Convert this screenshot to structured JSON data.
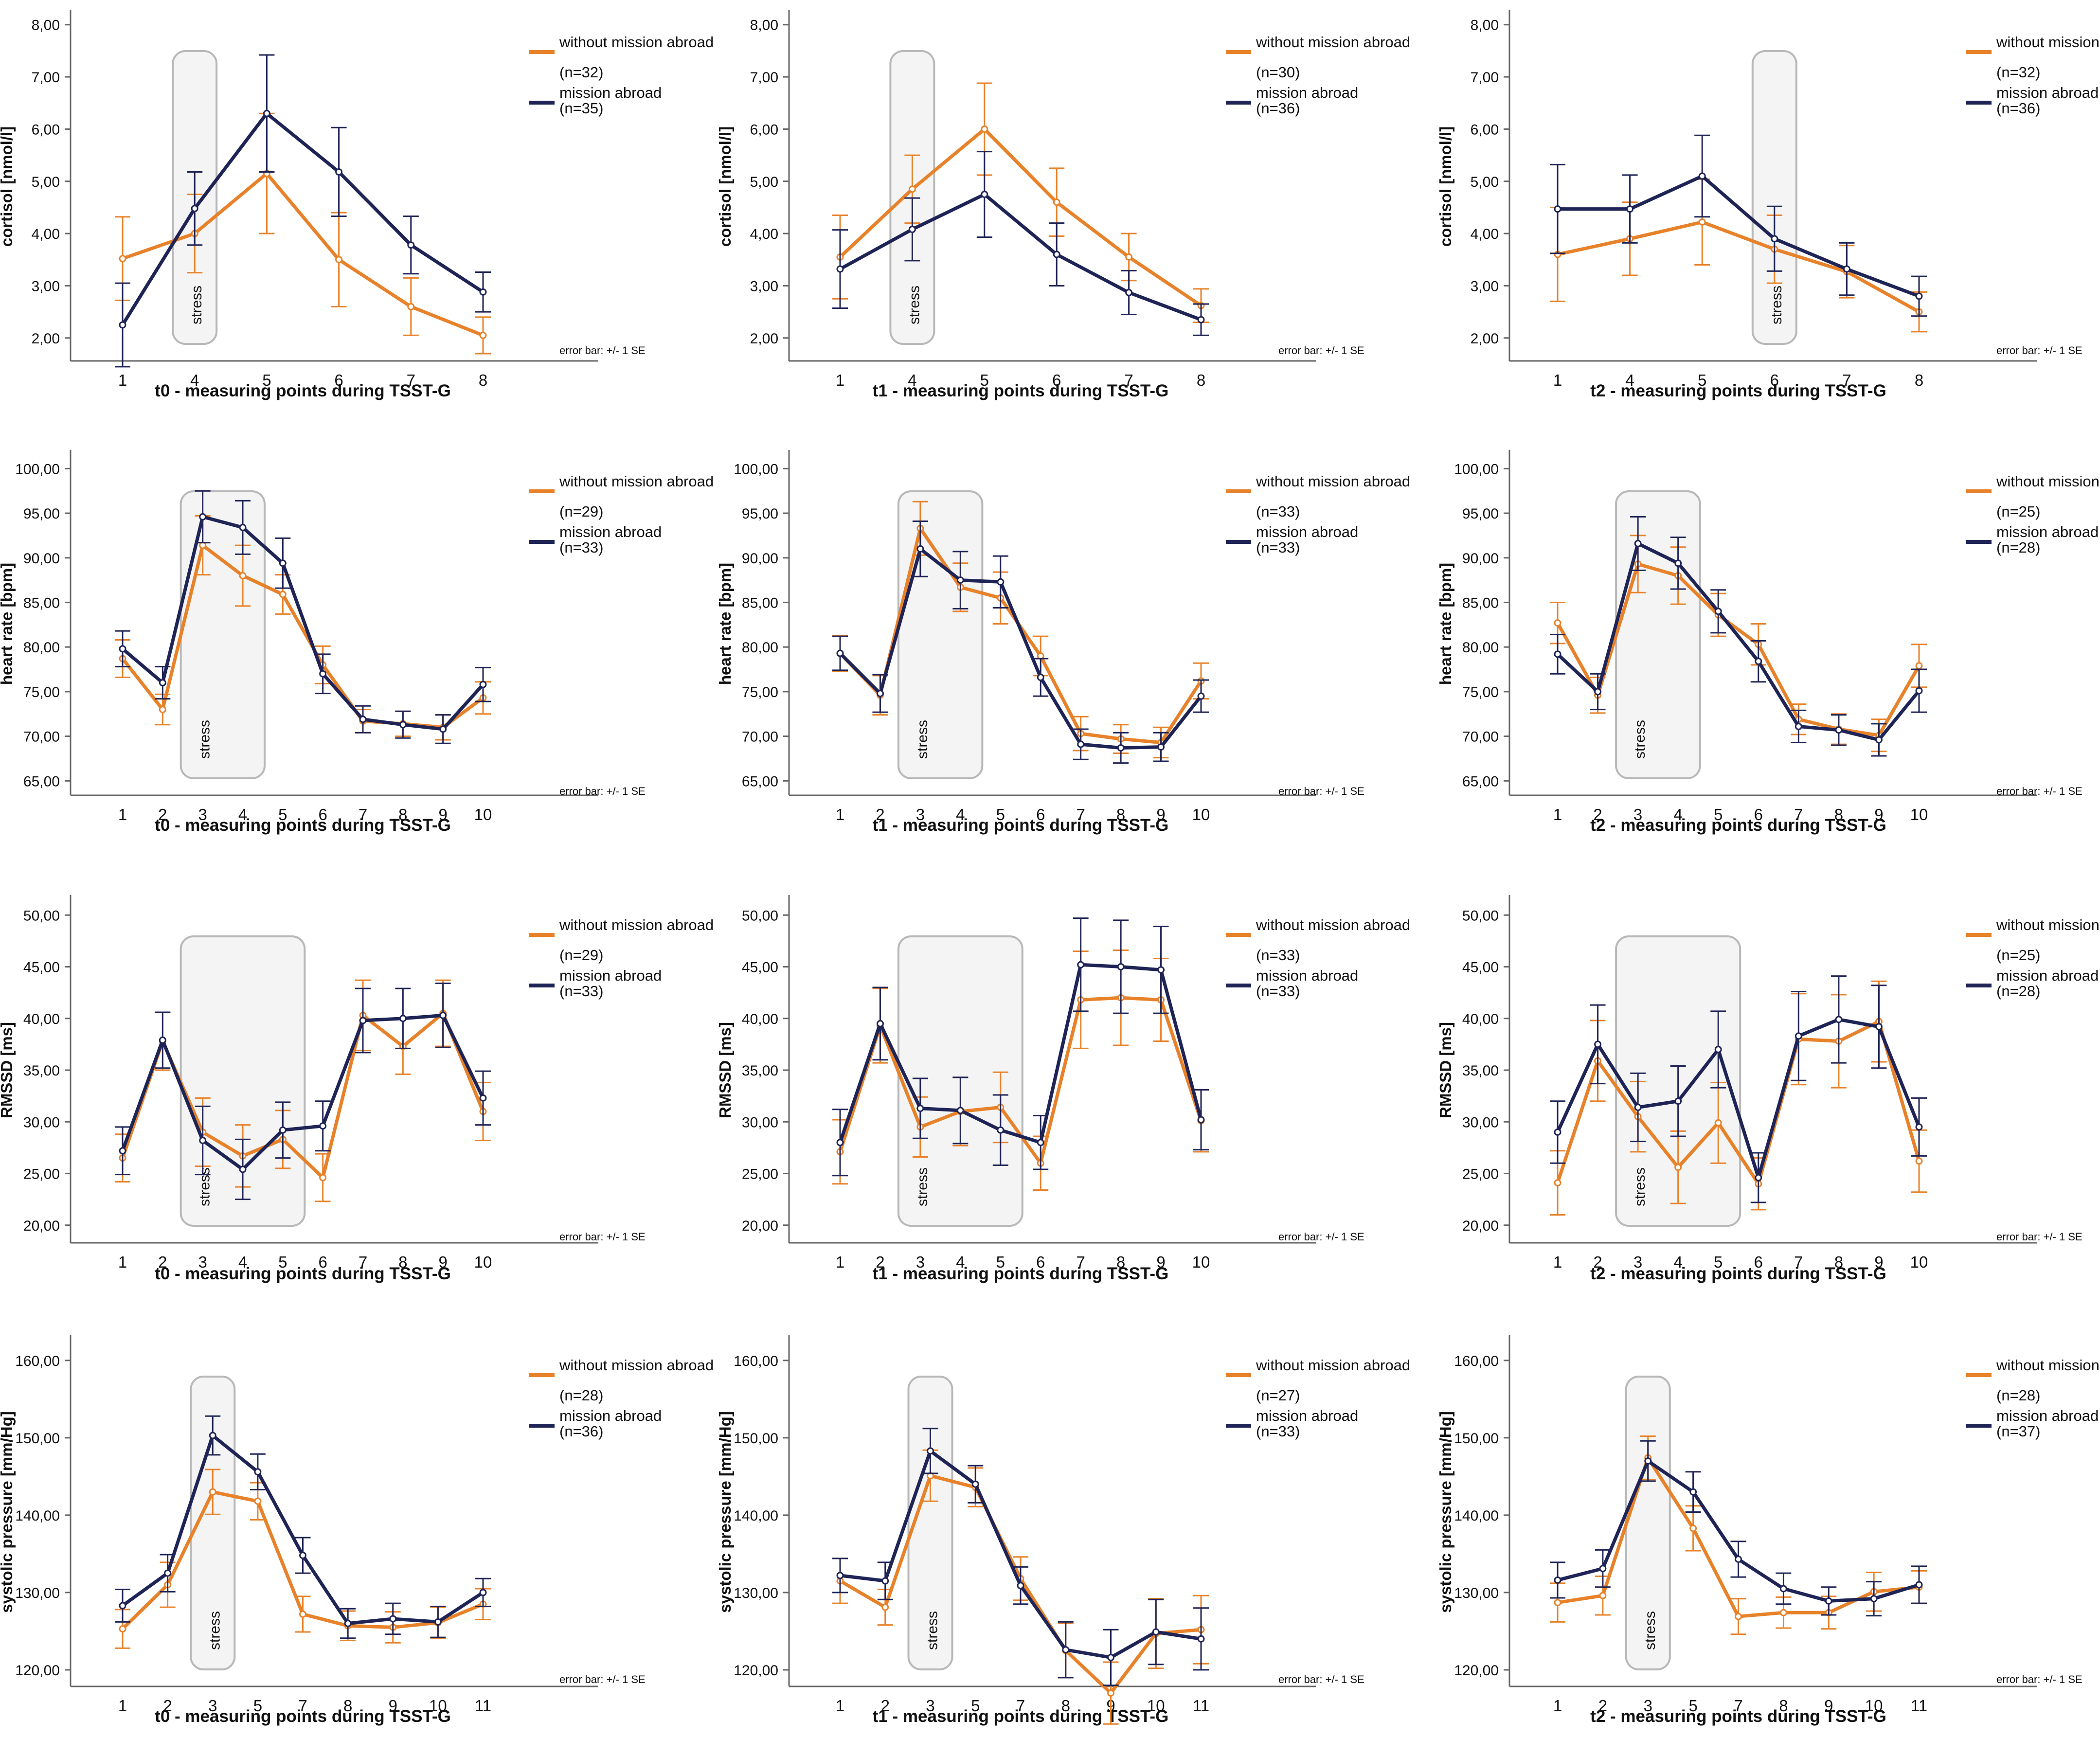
{
  "page": {
    "error_bar_note": "error bar: +/- 1 SE",
    "legend_labels": {
      "without": "without mission abroad",
      "with": "mission abroad"
    },
    "stress_label": "stress"
  },
  "colors": {
    "without_mission": "#e8822a",
    "mission": "#1f2456",
    "stress_box_fill": "#f4f4f4",
    "stress_box_stroke": "#b8b8b8",
    "axis": "#666666",
    "text": "#111111"
  },
  "chart_data": [
    {
      "type": "line",
      "row": 0,
      "col": 0,
      "ylabel": "cortisol [nmol/l]",
      "xlabel": "t0 - measuring points during TSST-G",
      "categories": [
        "1",
        "4",
        "5",
        "6",
        "7",
        "8"
      ],
      "ylim": [
        1.7,
        8.1
      ],
      "yticks": [
        2,
        3,
        4,
        5,
        6,
        7,
        8
      ],
      "stress_categories": [
        "4"
      ],
      "series": [
        {
          "name": "without mission abroad",
          "n": "(n=32)",
          "values": [
            3.52,
            4.0,
            5.15,
            3.5,
            2.6,
            2.05
          ],
          "se": [
            0.8,
            0.75,
            1.15,
            0.9,
            0.55,
            0.35
          ]
        },
        {
          "name": "mission abroad",
          "n": "(n=35)",
          "values": [
            2.25,
            4.48,
            6.3,
            5.18,
            3.78,
            2.88
          ],
          "se": [
            0.8,
            0.7,
            1.12,
            0.85,
            0.55,
            0.38
          ]
        }
      ]
    },
    {
      "type": "line",
      "row": 0,
      "col": 1,
      "ylabel": "cortisol [nmol/l]",
      "xlabel": "t1 - measuring points during TSST-G",
      "categories": [
        "1",
        "4",
        "5",
        "6",
        "7",
        "8"
      ],
      "ylim": [
        1.7,
        8.1
      ],
      "yticks": [
        2,
        3,
        4,
        5,
        6,
        7,
        8
      ],
      "stress_categories": [
        "4"
      ],
      "series": [
        {
          "name": "without mission abroad",
          "n": "(n=30)",
          "values": [
            3.55,
            4.85,
            6.0,
            4.6,
            3.55,
            2.62
          ],
          "se": [
            0.8,
            0.65,
            0.88,
            0.65,
            0.45,
            0.32
          ]
        },
        {
          "name": "mission abroad",
          "n": "(n=36)",
          "values": [
            3.32,
            4.08,
            4.75,
            3.6,
            2.87,
            2.35
          ],
          "se": [
            0.75,
            0.6,
            0.82,
            0.6,
            0.42,
            0.3
          ]
        }
      ]
    },
    {
      "type": "line",
      "row": 0,
      "col": 2,
      "ylabel": "cortisol [nmol/l]",
      "xlabel": "t2 - measuring points during TSST-G",
      "categories": [
        "1",
        "4",
        "5",
        "6",
        "7",
        "8"
      ],
      "ylim": [
        1.7,
        8.1
      ],
      "yticks": [
        2,
        3,
        4,
        5,
        6,
        7,
        8
      ],
      "stress_categories": [
        "6"
      ],
      "series": [
        {
          "name": "without mission abroad",
          "n": "(n=32)",
          "values": [
            3.6,
            3.9,
            4.22,
            3.7,
            3.27,
            2.5
          ],
          "se": [
            0.9,
            0.7,
            0.82,
            0.65,
            0.5,
            0.38
          ]
        },
        {
          "name": "mission abroad",
          "n": "(n=36)",
          "values": [
            4.47,
            4.47,
            5.1,
            3.9,
            3.32,
            2.8
          ],
          "se": [
            0.85,
            0.65,
            0.78,
            0.62,
            0.5,
            0.38
          ]
        }
      ]
    },
    {
      "type": "line",
      "row": 1,
      "col": 0,
      "ylabel": "heart rate [bpm]",
      "xlabel": "t0 - measuring points during TSST-G",
      "categories": [
        "1",
        "2",
        "3",
        "4",
        "5",
        "6",
        "7",
        "8",
        "9",
        "10"
      ],
      "ylim": [
        64.2,
        101
      ],
      "yticks": [
        65,
        70,
        75,
        80,
        85,
        90,
        95,
        100
      ],
      "stress_categories": [
        "3",
        "4"
      ],
      "series": [
        {
          "name": "without mission abroad",
          "n": "(n=29)",
          "values": [
            78.7,
            73.0,
            91.4,
            88.0,
            85.9,
            78.0,
            71.7,
            71.4,
            71.0,
            74.3
          ],
          "se": [
            2.1,
            1.7,
            3.3,
            3.4,
            2.2,
            2.1,
            1.3,
            1.4,
            1.4,
            1.8
          ]
        },
        {
          "name": "mission abroad",
          "n": "(n=33)",
          "values": [
            79.8,
            76.0,
            94.6,
            93.4,
            89.4,
            77.0,
            71.9,
            71.3,
            70.8,
            75.8
          ],
          "se": [
            2.0,
            1.8,
            2.9,
            3.0,
            2.8,
            2.2,
            1.5,
            1.5,
            1.6,
            1.9
          ]
        }
      ]
    },
    {
      "type": "line",
      "row": 1,
      "col": 1,
      "ylabel": "heart rate [bpm]",
      "xlabel": "t1 - measuring points during TSST-G",
      "categories": [
        "1",
        "2",
        "3",
        "4",
        "5",
        "6",
        "7",
        "8",
        "9",
        "10"
      ],
      "ylim": [
        64.2,
        101
      ],
      "yticks": [
        65,
        70,
        75,
        80,
        85,
        90,
        95,
        100
      ],
      "stress_categories": [
        "3",
        "4"
      ],
      "series": [
        {
          "name": "without mission abroad",
          "n": "(n=33)",
          "values": [
            79.3,
            74.6,
            93.3,
            86.7,
            85.5,
            79.0,
            70.3,
            69.7,
            69.3,
            76.2
          ],
          "se": [
            2.0,
            2.2,
            3.0,
            2.7,
            2.9,
            2.2,
            1.9,
            1.6,
            1.7,
            2.0
          ]
        },
        {
          "name": "mission abroad",
          "n": "(n=33)",
          "values": [
            79.3,
            74.8,
            91.0,
            87.5,
            87.3,
            76.6,
            69.1,
            68.7,
            68.8,
            74.5
          ],
          "se": [
            1.9,
            2.1,
            3.1,
            3.2,
            2.9,
            2.1,
            1.7,
            1.7,
            1.6,
            1.8
          ]
        }
      ]
    },
    {
      "type": "line",
      "row": 1,
      "col": 2,
      "ylabel": "heart rate [bpm]",
      "xlabel": "t2 - measuring points during TSST-G",
      "categories": [
        "1",
        "2",
        "3",
        "4",
        "5",
        "6",
        "7",
        "8",
        "9",
        "10"
      ],
      "ylim": [
        64.2,
        101
      ],
      "yticks": [
        65,
        70,
        75,
        80,
        85,
        90,
        95,
        100
      ],
      "stress_categories": [
        "3",
        "4"
      ],
      "series": [
        {
          "name": "without mission abroad",
          "n": "(n=25)",
          "values": [
            82.7,
            74.6,
            89.3,
            88.0,
            83.6,
            80.3,
            71.9,
            70.8,
            70.1,
            77.9
          ],
          "se": [
            2.3,
            2.0,
            3.2,
            3.2,
            2.4,
            2.3,
            1.7,
            1.7,
            1.8,
            2.4
          ]
        },
        {
          "name": "mission abroad",
          "n": "(n=28)",
          "values": [
            79.2,
            75.0,
            91.6,
            89.4,
            84.0,
            78.4,
            71.1,
            70.7,
            69.6,
            75.1
          ],
          "se": [
            2.2,
            2.0,
            3.0,
            2.9,
            2.4,
            2.3,
            1.8,
            1.7,
            1.8,
            2.4
          ]
        }
      ]
    },
    {
      "type": "line",
      "row": 2,
      "col": 0,
      "ylabel": "RMSSD [ms]",
      "xlabel": "t0 - measuring points during TSST-G",
      "categories": [
        "1",
        "2",
        "3",
        "4",
        "5",
        "6",
        "7",
        "8",
        "9",
        "10"
      ],
      "ylim": [
        19,
        51
      ],
      "yticks": [
        20,
        25,
        30,
        35,
        40,
        45,
        50
      ],
      "stress_categories": [
        "3",
        "4",
        "5"
      ],
      "series": [
        {
          "name": "without mission abroad",
          "n": "(n=29)",
          "values": [
            26.5,
            37.8,
            29.0,
            26.7,
            28.3,
            24.6,
            40.3,
            37.3,
            40.5,
            31.0
          ],
          "se": [
            2.3,
            2.8,
            3.3,
            3.0,
            2.8,
            2.3,
            3.4,
            2.7,
            3.2,
            2.8
          ]
        },
        {
          "name": "mission abroad",
          "n": "(n=33)",
          "values": [
            27.2,
            37.9,
            28.2,
            25.4,
            29.2,
            29.6,
            39.8,
            40.0,
            40.3,
            32.3
          ],
          "se": [
            2.3,
            2.7,
            3.3,
            2.9,
            2.7,
            2.4,
            3.1,
            2.9,
            3.1,
            2.6
          ]
        }
      ]
    },
    {
      "type": "line",
      "row": 2,
      "col": 1,
      "ylabel": "RMSSD [ms]",
      "xlabel": "t1 - measuring points during TSST-G",
      "categories": [
        "1",
        "2",
        "3",
        "4",
        "5",
        "6",
        "7",
        "8",
        "9",
        "10"
      ],
      "ylim": [
        19,
        51
      ],
      "yticks": [
        20,
        25,
        30,
        35,
        40,
        45,
        50
      ],
      "stress_categories": [
        "3",
        "4",
        "5"
      ],
      "series": [
        {
          "name": "without mission abroad",
          "n": "(n=33)",
          "values": [
            27.1,
            39.3,
            29.5,
            31.0,
            31.4,
            26.0,
            41.8,
            42.0,
            41.8,
            30.1
          ],
          "se": [
            3.1,
            3.6,
            2.9,
            3.3,
            3.4,
            2.6,
            4.7,
            4.6,
            4.0,
            3.0
          ]
        },
        {
          "name": "mission abroad",
          "n": "(n=33)",
          "values": [
            28.0,
            39.5,
            31.3,
            31.1,
            29.2,
            28.0,
            45.2,
            45.0,
            44.7,
            30.2
          ],
          "se": [
            3.2,
            3.5,
            2.9,
            3.2,
            3.4,
            2.6,
            4.5,
            4.5,
            4.2,
            2.9
          ]
        }
      ]
    },
    {
      "type": "line",
      "row": 2,
      "col": 2,
      "ylabel": "RMSSD [ms]",
      "xlabel": "t2 - measuring points during TSST-G",
      "categories": [
        "1",
        "2",
        "3",
        "4",
        "5",
        "6",
        "7",
        "8",
        "9",
        "10"
      ],
      "ylim": [
        19,
        51
      ],
      "yticks": [
        20,
        25,
        30,
        35,
        40,
        45,
        50
      ],
      "stress_categories": [
        "3",
        "4",
        "5"
      ],
      "series": [
        {
          "name": "without mission abroad",
          "n": "(n=25)",
          "values": [
            24.1,
            35.9,
            30.5,
            25.6,
            29.9,
            24.0,
            38.0,
            37.8,
            39.7,
            26.2
          ],
          "se": [
            3.1,
            3.9,
            3.4,
            3.5,
            3.9,
            2.5,
            4.4,
            4.5,
            3.9,
            3.0
          ]
        },
        {
          "name": "mission abroad",
          "n": "(n=28)",
          "values": [
            29.0,
            37.5,
            31.4,
            32.0,
            37.0,
            24.6,
            38.3,
            39.9,
            39.2,
            29.5
          ],
          "se": [
            3.0,
            3.8,
            3.3,
            3.4,
            3.7,
            2.4,
            4.3,
            4.2,
            4.0,
            2.8
          ]
        }
      ]
    },
    {
      "type": "line",
      "row": 3,
      "col": 0,
      "ylabel": "systolic pressure [mm/Hg]",
      "xlabel": "t0 - measuring points during TSST-G",
      "categories": [
        "1",
        "2",
        "3",
        "5",
        "7",
        "8",
        "9",
        "10",
        "11"
      ],
      "ylim": [
        118.8,
        162
      ],
      "yticks": [
        120,
        130,
        140,
        150,
        160
      ],
      "stress_categories": [
        "3"
      ],
      "series": [
        {
          "name": "without mission abroad",
          "n": "(n=28)",
          "values": [
            125.3,
            131.0,
            143.0,
            141.8,
            127.2,
            125.7,
            125.5,
            126.1,
            128.5
          ],
          "se": [
            2.5,
            2.9,
            2.9,
            2.4,
            2.3,
            1.9,
            2.0,
            2.0,
            2.0
          ]
        },
        {
          "name": "mission abroad",
          "n": "(n=36)",
          "values": [
            128.3,
            132.5,
            150.3,
            145.6,
            134.8,
            126.0,
            126.6,
            126.2,
            130.0
          ],
          "se": [
            2.1,
            2.4,
            2.5,
            2.3,
            2.3,
            1.9,
            2.0,
            2.0,
            1.8
          ]
        }
      ]
    },
    {
      "type": "line",
      "row": 3,
      "col": 1,
      "ylabel": "systolic pressure [mm/Hg]",
      "xlabel": "t1 - measuring points during TSST-G",
      "categories": [
        "1",
        "2",
        "3",
        "5",
        "7",
        "8",
        "9",
        "10",
        "11"
      ],
      "ylim": [
        118.8,
        162
      ],
      "yticks": [
        120,
        130,
        140,
        150,
        160
      ],
      "stress_categories": [
        "3"
      ],
      "series": [
        {
          "name": "without mission abroad",
          "n": "(n=27)",
          "values": [
            131.5,
            128.1,
            145.1,
            143.6,
            131.8,
            122.5,
            117.0,
            124.7,
            125.2
          ],
          "se": [
            2.9,
            2.3,
            3.3,
            2.5,
            2.8,
            3.5,
            4.0,
            4.5,
            4.4
          ]
        },
        {
          "name": "mission abroad",
          "n": "(n=33)",
          "values": [
            132.2,
            131.5,
            148.3,
            144.0,
            130.9,
            122.6,
            121.6,
            124.9,
            124.0
          ],
          "se": [
            2.2,
            2.4,
            2.9,
            2.4,
            2.4,
            3.6,
            3.6,
            4.2,
            4.0
          ]
        }
      ]
    },
    {
      "type": "line",
      "row": 3,
      "col": 2,
      "ylabel": "systolic pressure [mm/Hg]",
      "xlabel": "t2 - measuring points during TSST-G",
      "categories": [
        "1",
        "2",
        "3",
        "5",
        "7",
        "8",
        "9",
        "10",
        "11"
      ],
      "ylim": [
        118.8,
        162
      ],
      "yticks": [
        120,
        130,
        140,
        150,
        160
      ],
      "stress_categories": [
        "3"
      ],
      "series": [
        {
          "name": "without mission abroad",
          "n": "(n=28)",
          "values": [
            128.7,
            129.6,
            147.4,
            138.3,
            126.9,
            127.4,
            127.4,
            130.1,
            130.7
          ],
          "se": [
            2.5,
            2.5,
            2.8,
            2.9,
            2.3,
            2.0,
            2.1,
            2.5,
            2.1
          ]
        },
        {
          "name": "mission abroad",
          "n": "(n=37)",
          "values": [
            131.6,
            133.1,
            147.0,
            143.0,
            134.3,
            130.5,
            128.9,
            129.2,
            131.0
          ],
          "se": [
            2.3,
            2.4,
            2.6,
            2.6,
            2.3,
            2.0,
            1.8,
            2.2,
            2.4
          ]
        }
      ]
    }
  ]
}
